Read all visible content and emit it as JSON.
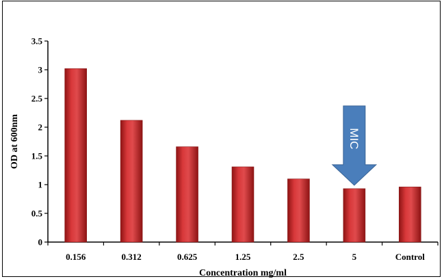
{
  "chart_data": {
    "type": "bar",
    "title": "",
    "xlabel": "Concentration mg/ml",
    "ylabel": "OD at 600nm",
    "categories": [
      "0.156",
      "0.312",
      "0.625",
      "1.25",
      "2.5",
      "5",
      "Control"
    ],
    "values": [
      3.02,
      2.12,
      1.66,
      1.31,
      1.1,
      0.93,
      0.96
    ],
    "ylim": [
      0,
      3.5
    ],
    "yticks": [
      "0",
      "0.5",
      "1",
      "1.5",
      "2",
      "2.5",
      "3",
      "3.5"
    ],
    "grid": false,
    "legend": "none",
    "bar_color": "#c0282a",
    "annotation": {
      "text": "MIC",
      "target_category": "5",
      "color": "#4a7ebb",
      "shape": "down-arrow-icon"
    }
  }
}
